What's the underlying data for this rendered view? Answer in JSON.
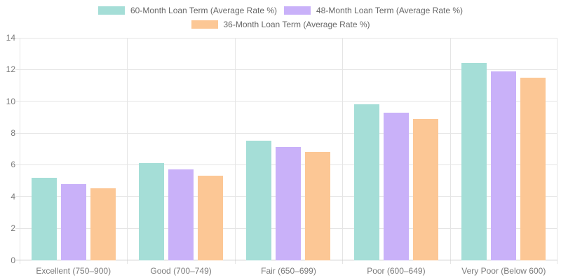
{
  "chart_data": {
    "type": "bar",
    "title": "",
    "xlabel": "",
    "ylabel": "",
    "categories": [
      "Excellent (750–900)",
      "Good (700–749)",
      "Fair (650–699)",
      "Poor (600–649)",
      "Very Poor (Below 600)"
    ],
    "series": [
      {
        "name": "60-Month Loan Term (Average Rate %)",
        "color": "#a5ded7",
        "values": [
          5.2,
          6.1,
          7.5,
          9.8,
          12.4
        ]
      },
      {
        "name": "48-Month Loan Term (Average Rate %)",
        "color": "#c9b1f9",
        "values": [
          4.8,
          5.7,
          7.1,
          9.3,
          11.9
        ]
      },
      {
        "name": "36-Month Loan Term (Average Rate %)",
        "color": "#fcc795",
        "values": [
          4.5,
          5.3,
          6.8,
          8.9,
          11.5
        ]
      }
    ],
    "ylim": [
      0,
      14
    ],
    "ytick_step": 2,
    "yticks": [
      "0",
      "2",
      "4",
      "6",
      "8",
      "10",
      "12",
      "14"
    ],
    "grid": true,
    "legend_position": "top"
  },
  "colors": {
    "gridline": "#e5e5e5",
    "axis_line": "#c9c9c9",
    "tick_text": "#7a7a7a",
    "legend_text": "#666666",
    "background": "#ffffff"
  }
}
